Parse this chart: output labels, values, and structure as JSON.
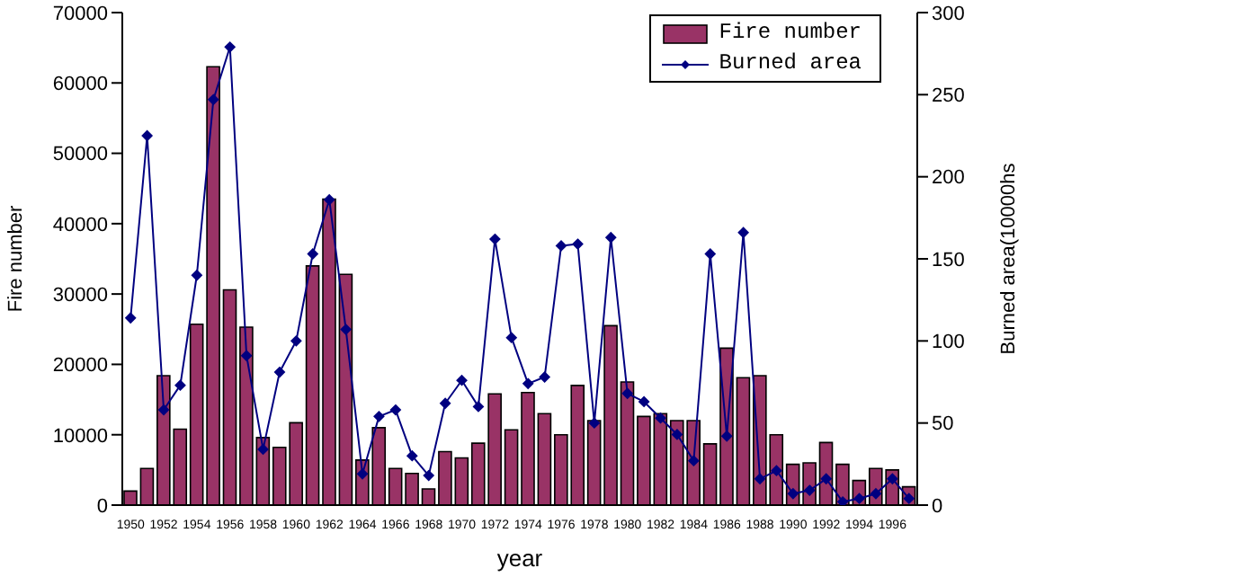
{
  "chart_data": {
    "type": "bar",
    "categories": [
      "1950",
      null,
      "1952",
      null,
      "1954",
      null,
      "1956",
      null,
      "1958",
      null,
      "1960",
      null,
      "1962",
      null,
      "1964",
      null,
      "1966",
      null,
      "1968",
      null,
      "1970",
      null,
      "1972",
      null,
      "1974",
      null,
      "1976",
      null,
      "1978",
      null,
      "1980",
      null,
      "1982",
      null,
      "1984",
      null,
      "1986",
      null,
      "1988",
      null,
      "1990",
      null,
      "1992",
      null,
      "1994",
      null,
      "1996",
      null
    ],
    "xlabel": "year",
    "ylabel": "Fire number",
    "y2label": "Burned area(10000hs",
    "series": [
      {
        "name": "Fire number",
        "color": "#993366",
        "values": [
          2000,
          5200,
          18400,
          10800,
          25700,
          62300,
          30600,
          25300,
          9600,
          8200,
          11700,
          34000,
          43500,
          32800,
          6400,
          11000,
          5200,
          4500,
          2300,
          7600,
          6700,
          8800,
          15800,
          10700,
          16000,
          13000,
          10000,
          17000,
          12000,
          25500,
          17500,
          12600,
          13000,
          12000,
          12000,
          8700,
          22300,
          18100,
          18400,
          10000,
          5800,
          6000,
          8900,
          5800,
          3500,
          5200,
          5000,
          2600
        ]
      },
      {
        "name": "Burned area",
        "type": "line",
        "axis": "y2",
        "color": "#000080",
        "marker": "diamond",
        "values": [
          114,
          225,
          58,
          73,
          140,
          247,
          279,
          91,
          34,
          81,
          100,
          153,
          186,
          107,
          19,
          54,
          58,
          30,
          18,
          62,
          76,
          60,
          162,
          102,
          74,
          78,
          158,
          159,
          50,
          163,
          68,
          63,
          53,
          43,
          27,
          153,
          42,
          166,
          16,
          21,
          7,
          9,
          16,
          2,
          4,
          7,
          16,
          4
        ]
      }
    ],
    "ylim": [
      0,
      70000
    ],
    "yticks": [
      0,
      10000,
      20000,
      30000,
      40000,
      50000,
      60000,
      70000
    ],
    "y2lim": [
      0,
      300
    ],
    "y2ticks": [
      0,
      50,
      100,
      150,
      200,
      250,
      300
    ],
    "grid": false,
    "legend": "top right"
  }
}
